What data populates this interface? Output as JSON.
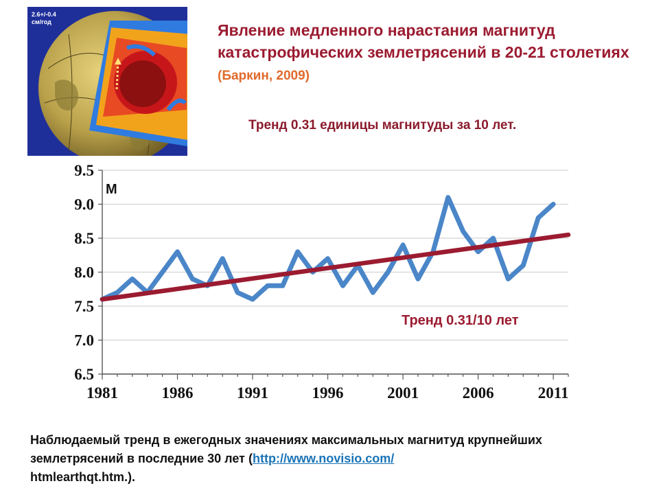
{
  "header": {
    "title": "Явление медленного нарастания магнитуд катастрофических землетрясений в 20-21 столетиях",
    "author": "(Баркин, 2009)",
    "trend_caption": "Тренд 0.31 единицы магнитуды за 10 лет."
  },
  "globe_image": {
    "caption_line1": "2.6+/-0.4",
    "caption_line2": "см/год",
    "colors": {
      "background": "#1f2f9a",
      "core": "#8c1010",
      "mantle_hot": "#f2a31c",
      "mantle_cold": "#2f7be0"
    }
  },
  "footer": {
    "text": "Наблюдаемый тренд в ежегодных значениях максимальных магнитуд крупнейших землетрясений в последние 30 лет (",
    "link": "http://www.novisio.com/",
    "tail": "htmlearthqt.htm.)."
  },
  "chart_data": {
    "type": "line",
    "ylabel": "M",
    "x_ticks": [
      1981,
      1986,
      1991,
      1996,
      2001,
      2006,
      2011
    ],
    "y_ticks": [
      "6.5",
      "7.0",
      "7.5",
      "8.0",
      "8.5",
      "9.0",
      "9.5"
    ],
    "xlim": [
      1981,
      2012
    ],
    "ylim": [
      6.5,
      9.5
    ],
    "grid": true,
    "series": [
      {
        "x": [
          1981,
          1982,
          1983,
          1984,
          1985,
          1986,
          1987,
          1988,
          1989,
          1990,
          1991,
          1992,
          1993,
          1994,
          1995,
          1996,
          1997,
          1998,
          1999,
          2000,
          2001,
          2002,
          2003,
          2004,
          2005,
          2006,
          2007,
          2008,
          2009,
          2010,
          2011
        ],
        "values": [
          7.6,
          7.7,
          7.9,
          7.7,
          8.0,
          8.3,
          7.9,
          7.8,
          8.2,
          7.7,
          7.6,
          7.8,
          7.8,
          8.3,
          8.0,
          8.2,
          7.8,
          8.1,
          7.7,
          8.0,
          8.4,
          7.9,
          8.3,
          9.1,
          8.6,
          8.3,
          8.5,
          7.9,
          8.1,
          8.8,
          9.0
        ],
        "color": "#4a86c8"
      }
    ],
    "trend": {
      "label": "Тренд 0.31/10 лет",
      "x": [
        1981,
        2012
      ],
      "y": [
        7.6,
        8.55
      ],
      "color": "#9b1b30"
    }
  }
}
